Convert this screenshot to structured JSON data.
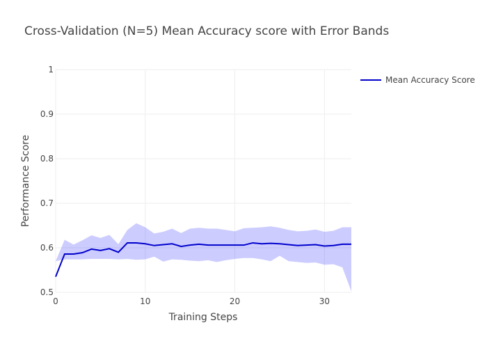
{
  "chart_data": {
    "type": "line",
    "title": "Cross-Validation (N=5) Mean Accuracy score with Error Bands",
    "xlabel": "Training Steps",
    "ylabel": "Performance Score",
    "xlim": [
      0,
      33
    ],
    "ylim": [
      0.5,
      1
    ],
    "xticks": [
      0,
      10,
      20,
      30
    ],
    "yticks": [
      0.5,
      0.6,
      0.7,
      0.8,
      0.9,
      1
    ],
    "grid": true,
    "legend_position": "top-right",
    "series": [
      {
        "name": "Mean Accuracy Score",
        "color": "#0000cc",
        "x": [
          0,
          1,
          2,
          3,
          4,
          5,
          6,
          7,
          8,
          9,
          10,
          11,
          12,
          13,
          14,
          15,
          16,
          17,
          18,
          19,
          20,
          21,
          22,
          23,
          24,
          25,
          26,
          27,
          28,
          29,
          30,
          31,
          32,
          33
        ],
        "y": [
          0.535,
          0.586,
          0.586,
          0.589,
          0.597,
          0.594,
          0.598,
          0.59,
          0.611,
          0.611,
          0.609,
          0.605,
          0.607,
          0.609,
          0.603,
          0.606,
          0.608,
          0.606,
          0.606,
          0.606,
          0.606,
          0.606,
          0.611,
          0.609,
          0.61,
          0.609,
          0.607,
          0.605,
          0.606,
          0.607,
          0.604,
          0.605,
          0.608,
          0.608
        ],
        "upper": [
          0.57,
          0.618,
          0.607,
          0.617,
          0.628,
          0.622,
          0.629,
          0.608,
          0.64,
          0.655,
          0.646,
          0.632,
          0.636,
          0.643,
          0.633,
          0.643,
          0.645,
          0.643,
          0.643,
          0.64,
          0.637,
          0.644,
          0.645,
          0.646,
          0.648,
          0.645,
          0.64,
          0.637,
          0.638,
          0.641,
          0.636,
          0.638,
          0.646,
          0.646
        ],
        "lower": [
          0.57,
          0.574,
          0.574,
          0.574,
          0.575,
          0.575,
          0.575,
          0.574,
          0.575,
          0.573,
          0.574,
          0.58,
          0.569,
          0.574,
          0.573,
          0.571,
          0.57,
          0.572,
          0.568,
          0.572,
          0.575,
          0.577,
          0.577,
          0.574,
          0.57,
          0.582,
          0.57,
          0.568,
          0.566,
          0.567,
          0.562,
          0.563,
          0.556,
          0.502
        ],
        "band_color": "rgba(0,0,255,0.2)"
      }
    ]
  }
}
